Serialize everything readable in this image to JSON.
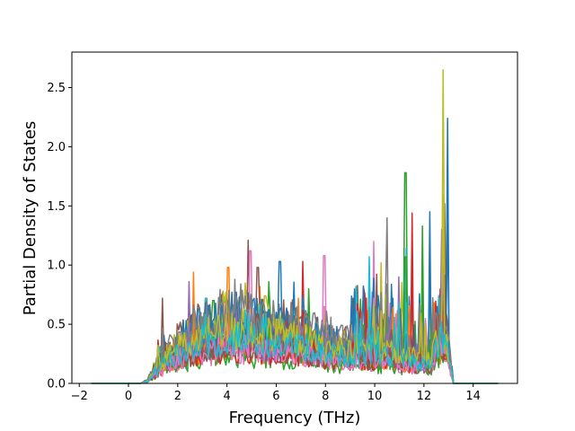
{
  "chart_data": {
    "type": "line",
    "title": "",
    "xlabel": "Frequency (THz)",
    "ylabel": "Partial Density of States",
    "xlim": [
      -2.3,
      15.8
    ],
    "ylim": [
      0.0,
      2.8
    ],
    "xticks": [
      -2,
      0,
      2,
      4,
      6,
      8,
      10,
      12,
      14
    ],
    "xtick_labels": [
      "−2",
      "0",
      "2",
      "4",
      "6",
      "8",
      "10",
      "12",
      "14"
    ],
    "yticks": [
      0.0,
      0.5,
      1.0,
      1.5,
      2.0,
      2.5
    ],
    "ytick_labels": [
      "0.0",
      "0.5",
      "1.0",
      "1.5",
      "2.0",
      "2.5"
    ],
    "grid": false,
    "legend": "none",
    "x_range": [
      -1.5,
      15.0
    ],
    "series_count": 20,
    "palette": [
      "#1f77b4",
      "#ff7f0e",
      "#2ca02c",
      "#d62728",
      "#9467bd",
      "#8c564b",
      "#e377c2",
      "#7f7f7f",
      "#bcbd22",
      "#17becf"
    ],
    "envelope": {
      "x": [
        0.0,
        0.5,
        0.8,
        1.0,
        1.5,
        2.0,
        2.5,
        3.0,
        3.5,
        4.0,
        4.5,
        5.0,
        5.5,
        6.0,
        6.5,
        7.0,
        7.5,
        8.0,
        8.5,
        9.0,
        9.5,
        10.0,
        10.5,
        11.0,
        11.5,
        12.0,
        12.3,
        12.5,
        12.8,
        13.0,
        13.2,
        15.0
      ],
      "y": [
        0.0,
        0.0,
        0.03,
        0.1,
        0.22,
        0.3,
        0.36,
        0.42,
        0.45,
        0.47,
        0.48,
        0.46,
        0.44,
        0.42,
        0.42,
        0.4,
        0.36,
        0.32,
        0.3,
        0.3,
        0.3,
        0.3,
        0.28,
        0.26,
        0.24,
        0.22,
        0.2,
        0.4,
        0.5,
        0.3,
        0.0,
        0.0
      ]
    },
    "peaks": [
      {
        "series": 0,
        "x": 12.95,
        "y": 2.24
      },
      {
        "series": 8,
        "x": 12.8,
        "y": 2.65
      },
      {
        "series": 2,
        "x": 11.25,
        "y": 1.78
      },
      {
        "series": 0,
        "x": 12.25,
        "y": 1.45
      },
      {
        "series": 3,
        "x": 11.5,
        "y": 1.44
      },
      {
        "series": 7,
        "x": 10.5,
        "y": 1.4
      },
      {
        "series": 2,
        "x": 11.95,
        "y": 1.33
      },
      {
        "series": 5,
        "x": 12.85,
        "y": 1.52
      },
      {
        "series": 4,
        "x": 12.7,
        "y": 1.3
      },
      {
        "series": 6,
        "x": 9.95,
        "y": 1.2
      },
      {
        "series": 5,
        "x": 4.85,
        "y": 1.21
      },
      {
        "series": 6,
        "x": 4.95,
        "y": 1.12
      },
      {
        "series": 9,
        "x": 9.8,
        "y": 1.07
      },
      {
        "series": 0,
        "x": 6.15,
        "y": 1.03
      },
      {
        "series": 3,
        "x": 7.1,
        "y": 1.03
      },
      {
        "series": 6,
        "x": 7.95,
        "y": 1.08
      },
      {
        "series": 8,
        "x": 10.25,
        "y": 1.02
      },
      {
        "series": 1,
        "x": 4.05,
        "y": 0.98
      },
      {
        "series": 1,
        "x": 2.65,
        "y": 0.94
      },
      {
        "series": 5,
        "x": 5.25,
        "y": 0.98
      },
      {
        "series": 4,
        "x": 2.45,
        "y": 0.86
      },
      {
        "series": 1,
        "x": 5.35,
        "y": 0.82
      },
      {
        "series": 2,
        "x": 5.7,
        "y": 0.86
      },
      {
        "series": 5,
        "x": 1.4,
        "y": 0.72
      },
      {
        "series": 9,
        "x": 9.25,
        "y": 0.82
      },
      {
        "series": 0,
        "x": 10.75,
        "y": 0.72
      },
      {
        "series": 1,
        "x": 6.9,
        "y": 0.72
      },
      {
        "series": 2,
        "x": 7.3,
        "y": 0.8
      },
      {
        "series": 9,
        "x": 3.15,
        "y": 0.72
      },
      {
        "series": 4,
        "x": 3.8,
        "y": 0.75
      },
      {
        "series": 8,
        "x": 5.55,
        "y": 0.74
      },
      {
        "series": 2,
        "x": 3.45,
        "y": 0.7
      },
      {
        "series": 4,
        "x": 11.0,
        "y": 0.9
      },
      {
        "series": 7,
        "x": 4.3,
        "y": 0.88
      },
      {
        "series": 9,
        "x": 11.3,
        "y": 1.14
      }
    ]
  }
}
